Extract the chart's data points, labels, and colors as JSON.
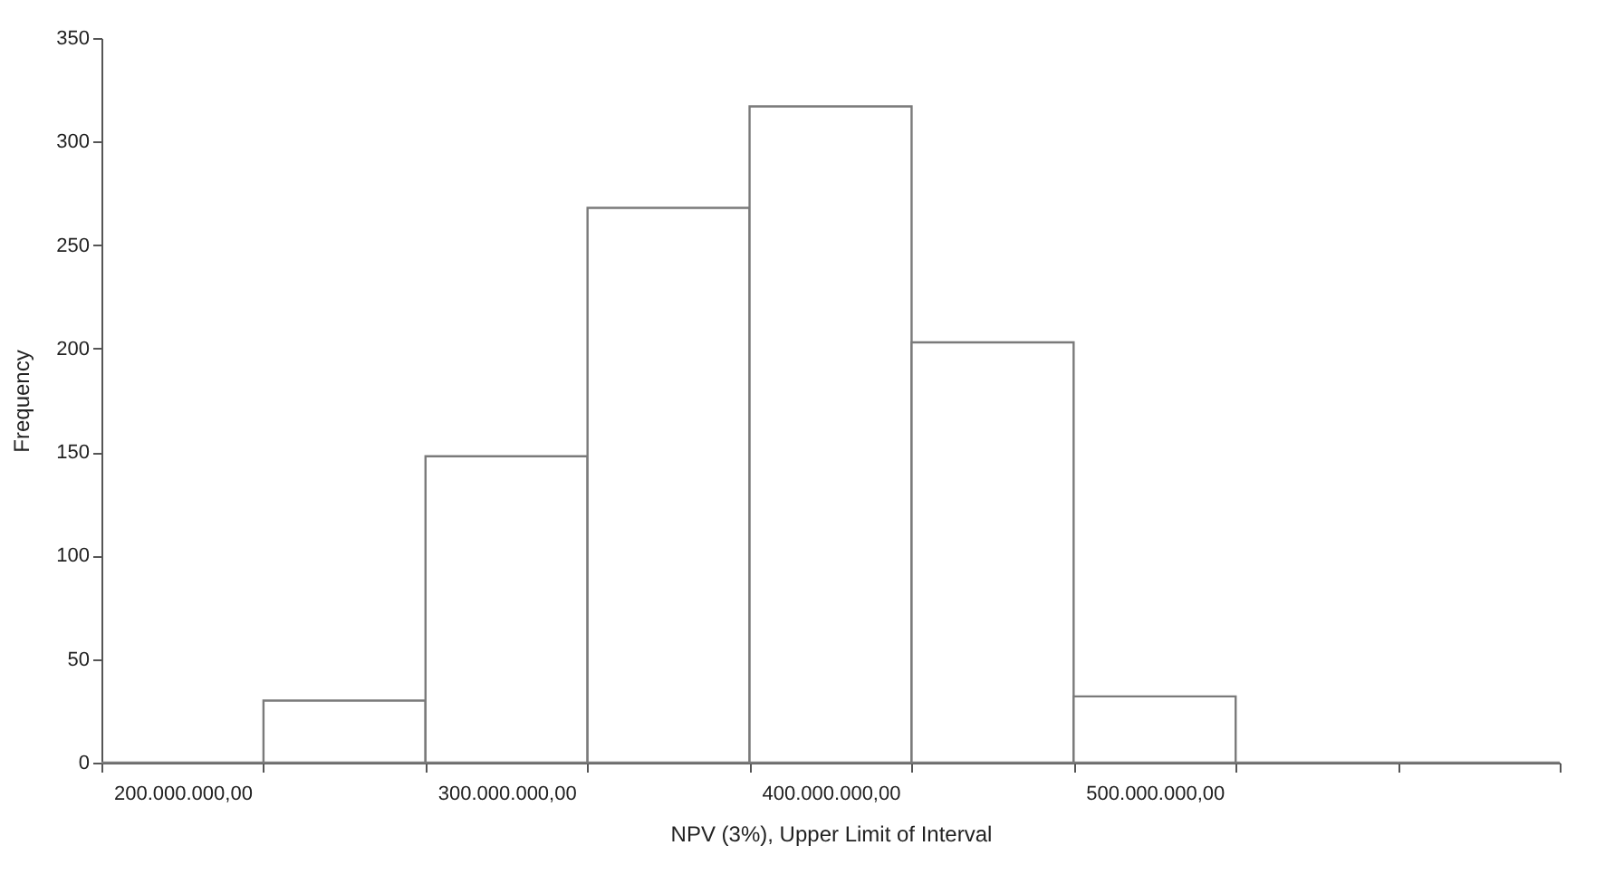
{
  "chart_data": {
    "type": "bar",
    "xlabel": "NPV (3%), Upper Limit of Interval",
    "ylabel": "Frequency",
    "categories": [
      "200.000.000,00",
      null,
      "300.000.000,00",
      null,
      "400.000.000,00",
      null,
      "500.000.000,00",
      null,
      null
    ],
    "values": [
      0,
      30,
      148,
      268,
      317,
      203,
      32,
      0,
      0
    ],
    "color": "#7a7a7a",
    "ylim": [
      0,
      350
    ],
    "yticks": [
      0,
      50,
      100,
      150,
      200,
      250,
      300,
      350
    ],
    "grid": false
  }
}
